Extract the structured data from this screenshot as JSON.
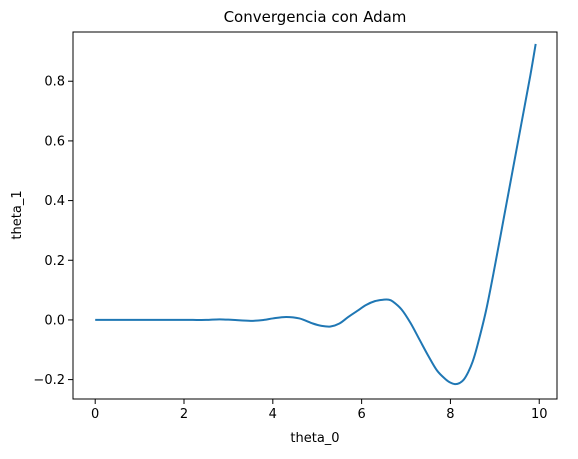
{
  "chart_data": {
    "type": "line",
    "title": "Convergencia con Adam",
    "xlabel": "theta_0",
    "ylabel": "theta_1",
    "xlim": [
      -0.5,
      10.4
    ],
    "ylim": [
      -0.265,
      0.965
    ],
    "grid": false,
    "xticks": [
      0,
      2,
      4,
      6,
      8,
      10
    ],
    "xtick_labels": [
      "0",
      "2",
      "4",
      "6",
      "8",
      "10"
    ],
    "yticks": [
      -0.2,
      0.0,
      0.2,
      0.4,
      0.6,
      0.8
    ],
    "ytick_labels": [
      "−0.2",
      "0.0",
      "0.2",
      "0.4",
      "0.6",
      "0.8"
    ],
    "series": [
      {
        "color": "#1f77b4",
        "x": [
          0.0,
          0.5,
          1.0,
          1.5,
          2.0,
          2.2,
          2.5,
          2.8,
          3.1,
          3.5,
          3.8,
          4.0,
          4.3,
          4.6,
          4.9,
          5.1,
          5.3,
          5.5,
          5.7,
          5.9,
          6.1,
          6.3,
          6.5,
          6.6,
          6.7,
          6.9,
          7.1,
          7.3,
          7.5,
          7.7,
          7.9,
          8.0,
          8.1,
          8.2,
          8.3,
          8.4,
          8.5,
          8.6,
          8.8,
          9.0,
          9.2,
          9.4,
          9.6,
          9.8,
          9.92
        ],
        "y": [
          0.0,
          0.0,
          0.0,
          0.0,
          0.0,
          0.0,
          0.0,
          0.002,
          0.0,
          -0.003,
          0.0,
          0.005,
          0.01,
          0.005,
          -0.012,
          -0.02,
          -0.022,
          -0.012,
          0.01,
          0.03,
          0.05,
          0.063,
          0.068,
          0.068,
          0.062,
          0.035,
          -0.01,
          -0.065,
          -0.12,
          -0.17,
          -0.2,
          -0.21,
          -0.215,
          -0.212,
          -0.2,
          -0.175,
          -0.14,
          -0.09,
          0.03,
          0.18,
          0.34,
          0.5,
          0.66,
          0.82,
          0.925
        ]
      }
    ]
  }
}
